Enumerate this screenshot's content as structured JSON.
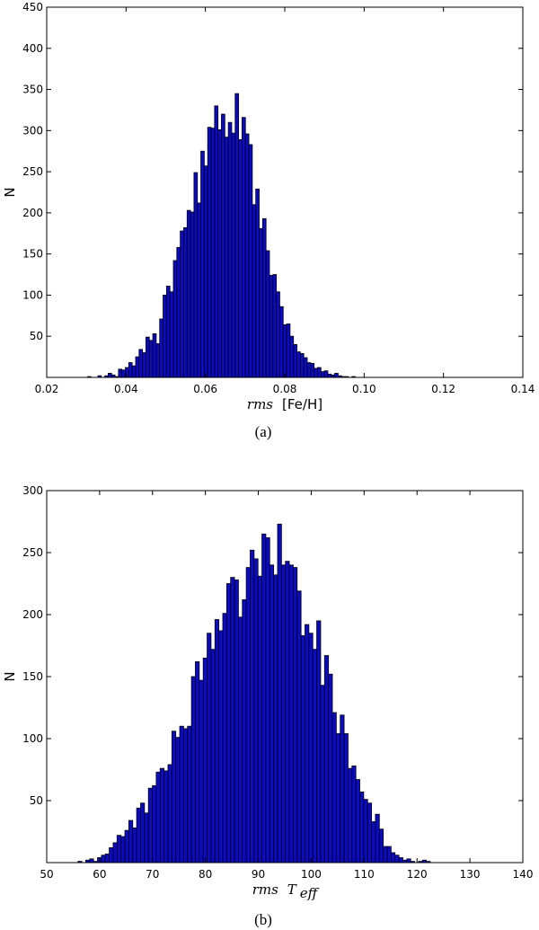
{
  "chart_data": [
    {
      "type": "bar",
      "subtype": "histogram",
      "caption": "(a)",
      "ylabel": "N",
      "xlabel_math": "rms",
      "xlabel_text": "[Fe/H]",
      "xlim": [
        0.02,
        0.14
      ],
      "ylim": [
        0,
        450
      ],
      "xticks": [
        "0.02",
        "0.04",
        "0.06",
        "0.08",
        "0.10",
        "0.12",
        "0.14"
      ],
      "xtick_values": [
        0.02,
        0.04,
        0.06,
        0.08,
        0.1,
        0.12,
        0.14
      ],
      "yticks": [
        "50",
        "100",
        "150",
        "200",
        "250",
        "300",
        "350",
        "400",
        "450"
      ],
      "ytick_values": [
        50,
        100,
        150,
        200,
        250,
        300,
        350,
        400,
        450
      ],
      "color": "#0b0bc4",
      "bin_start": 0.0303,
      "bin_width": 0.000865,
      "counts": [
        1,
        0,
        0,
        2,
        0,
        2,
        5,
        3,
        1,
        10,
        9,
        12,
        18,
        14,
        25,
        34,
        30,
        49,
        45,
        53,
        41,
        71,
        100,
        111,
        104,
        142,
        158,
        178,
        182,
        203,
        201,
        249,
        212,
        275,
        257,
        304,
        303,
        330,
        301,
        320,
        292,
        310,
        297,
        345,
        289,
        316,
        296,
        283,
        210,
        229,
        181,
        193,
        154,
        124,
        125,
        104,
        86,
        64,
        65,
        50,
        40,
        31,
        29,
        24,
        18,
        17,
        11,
        12,
        7,
        8,
        4,
        3,
        5,
        2,
        1,
        1,
        0,
        1
      ]
    },
    {
      "type": "bar",
      "subtype": "histogram",
      "caption": "(b)",
      "ylabel": "N",
      "xlabel_math": "rms",
      "xlabel_text": "T",
      "xlabel_sub": "eff",
      "xlim": [
        50,
        140
      ],
      "ylim": [
        0,
        300
      ],
      "xticks": [
        "50",
        "60",
        "70",
        "80",
        "90",
        "100",
        "110",
        "120",
        "130",
        "140"
      ],
      "xtick_values": [
        50,
        60,
        70,
        80,
        90,
        100,
        110,
        120,
        130,
        140
      ],
      "yticks": [
        "50",
        "100",
        "150",
        "200",
        "250",
        "300"
      ],
      "ytick_values": [
        50,
        100,
        150,
        200,
        250,
        300
      ],
      "color": "#0b0bc4",
      "bin_start": 55.9,
      "bin_width": 0.74,
      "counts": [
        1,
        0,
        2,
        3,
        1,
        4,
        6,
        7,
        12,
        16,
        22,
        21,
        26,
        34,
        28,
        44,
        48,
        40,
        60,
        62,
        73,
        76,
        74,
        79,
        106,
        101,
        110,
        108,
        110,
        150,
        162,
        147,
        165,
        185,
        172,
        196,
        187,
        201,
        225,
        230,
        228,
        198,
        212,
        238,
        252,
        245,
        231,
        265,
        262,
        240,
        232,
        273,
        240,
        243,
        240,
        238,
        219,
        183,
        192,
        185,
        172,
        195,
        143,
        167,
        152,
        121,
        104,
        119,
        104,
        76,
        78,
        67,
        57,
        51,
        48,
        33,
        39,
        27,
        13,
        13,
        8,
        6,
        4,
        2,
        3,
        1,
        0,
        1,
        2,
        1
      ]
    }
  ]
}
